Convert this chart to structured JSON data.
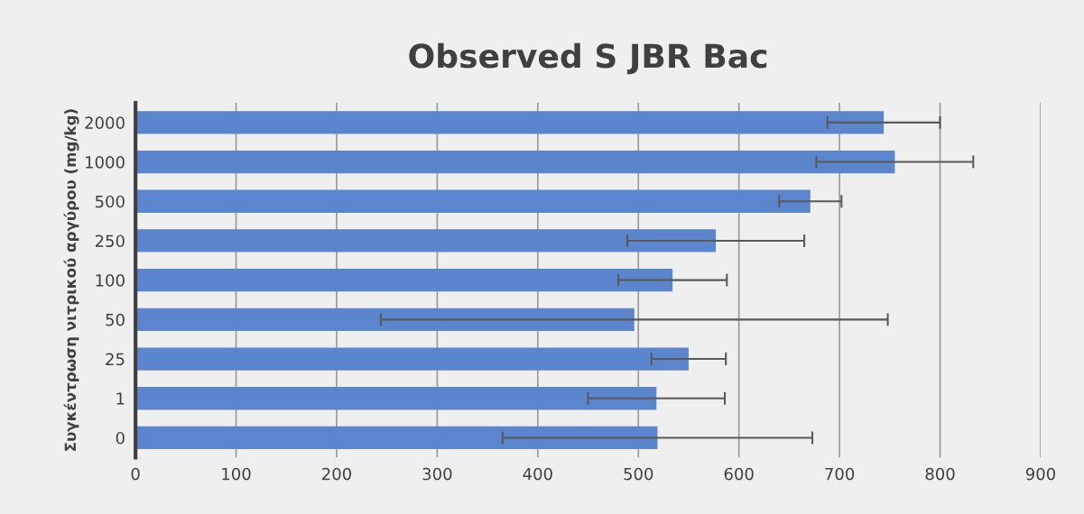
{
  "chart_data": {
    "type": "bar",
    "orientation": "horizontal",
    "title": "Observed S JBR Bac",
    "ylabel": "Συγκέντρωση νιτρικού αργύρου (mg/kg)",
    "categories": [
      "2000",
      "1000",
      "500",
      "250",
      "100",
      "50",
      "25",
      "1",
      "0"
    ],
    "values": [
      744,
      755,
      671,
      577,
      534,
      496,
      550,
      518,
      519
    ],
    "errors": [
      56,
      78,
      31,
      88,
      54,
      252,
      37,
      68,
      154
    ],
    "color": "#5b86cd",
    "xlim": [
      0,
      900
    ],
    "xticks": [
      0,
      100,
      200,
      300,
      400,
      500,
      600,
      700,
      800,
      900
    ],
    "grid": "x"
  }
}
